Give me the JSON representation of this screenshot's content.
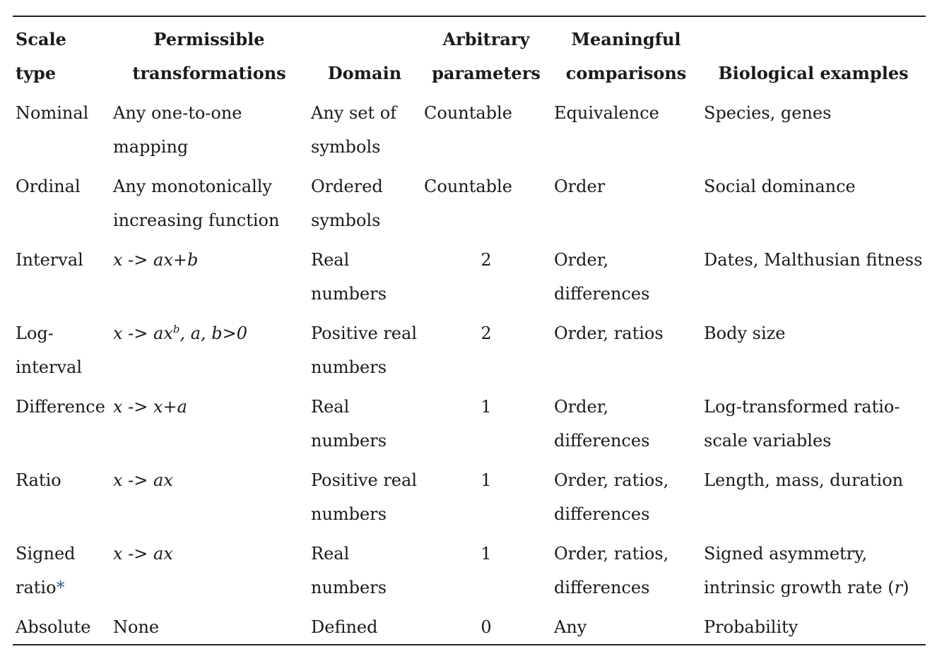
{
  "headers": {
    "scale_type": "Scale type",
    "permissible_transformations": "Permissible transformations",
    "domain": "Domain",
    "arbitrary_parameters": "Arbitrary parameters",
    "meaningful_comparisons": "Meaningful comparisons",
    "biological_examples": "Biological examples"
  },
  "rows": [
    {
      "scale": "Nominal",
      "transform": "Any one-to-one mapping",
      "domain": "Any set of symbols",
      "params": "Countable",
      "comparisons": "Equivalence",
      "examples": "Species, genes"
    },
    {
      "scale": "Ordinal",
      "transform": "Any monotonically increasing function",
      "domain": "Ordered symbols",
      "params": "Countable",
      "comparisons": "Order",
      "examples": "Social dominance"
    },
    {
      "scale": "Interval",
      "transform": "x -> ax+b",
      "domain": "Real numbers",
      "params": "2",
      "comparisons": "Order, differences",
      "examples": "Dates, Malthusian fitness"
    },
    {
      "scale": "Log-interval",
      "transform_main": "x -> ax",
      "transform_sup": "b",
      "transform_tail": ", a, b>0",
      "domain": "Positive real numbers",
      "params": "2",
      "comparisons": "Order, ratios",
      "examples": "Body size"
    },
    {
      "scale": "Difference",
      "transform": "x -> x+a",
      "domain": "Real numbers",
      "params": "1",
      "comparisons": "Order, differences",
      "examples": "Log-transformed ratio-scale variables"
    },
    {
      "scale": "Ratio",
      "transform": "x -> ax",
      "domain": "Positive real numbers",
      "params": "1",
      "comparisons": "Order, ratios, differences",
      "examples": "Length, mass, duration"
    },
    {
      "scale": "Signed ratio",
      "scale_mark": "*",
      "transform": "x -> ax",
      "domain": "Real numbers",
      "params": "1",
      "comparisons": "Order, ratios, differences",
      "examples_main": "Signed asymmetry, intrinsic growth rate (",
      "examples_var": "r",
      "examples_tail": ")"
    },
    {
      "scale": "Absolute",
      "transform": "None",
      "domain": "Defined",
      "params": "0",
      "comparisons": "Any",
      "examples": "Probability"
    }
  ]
}
